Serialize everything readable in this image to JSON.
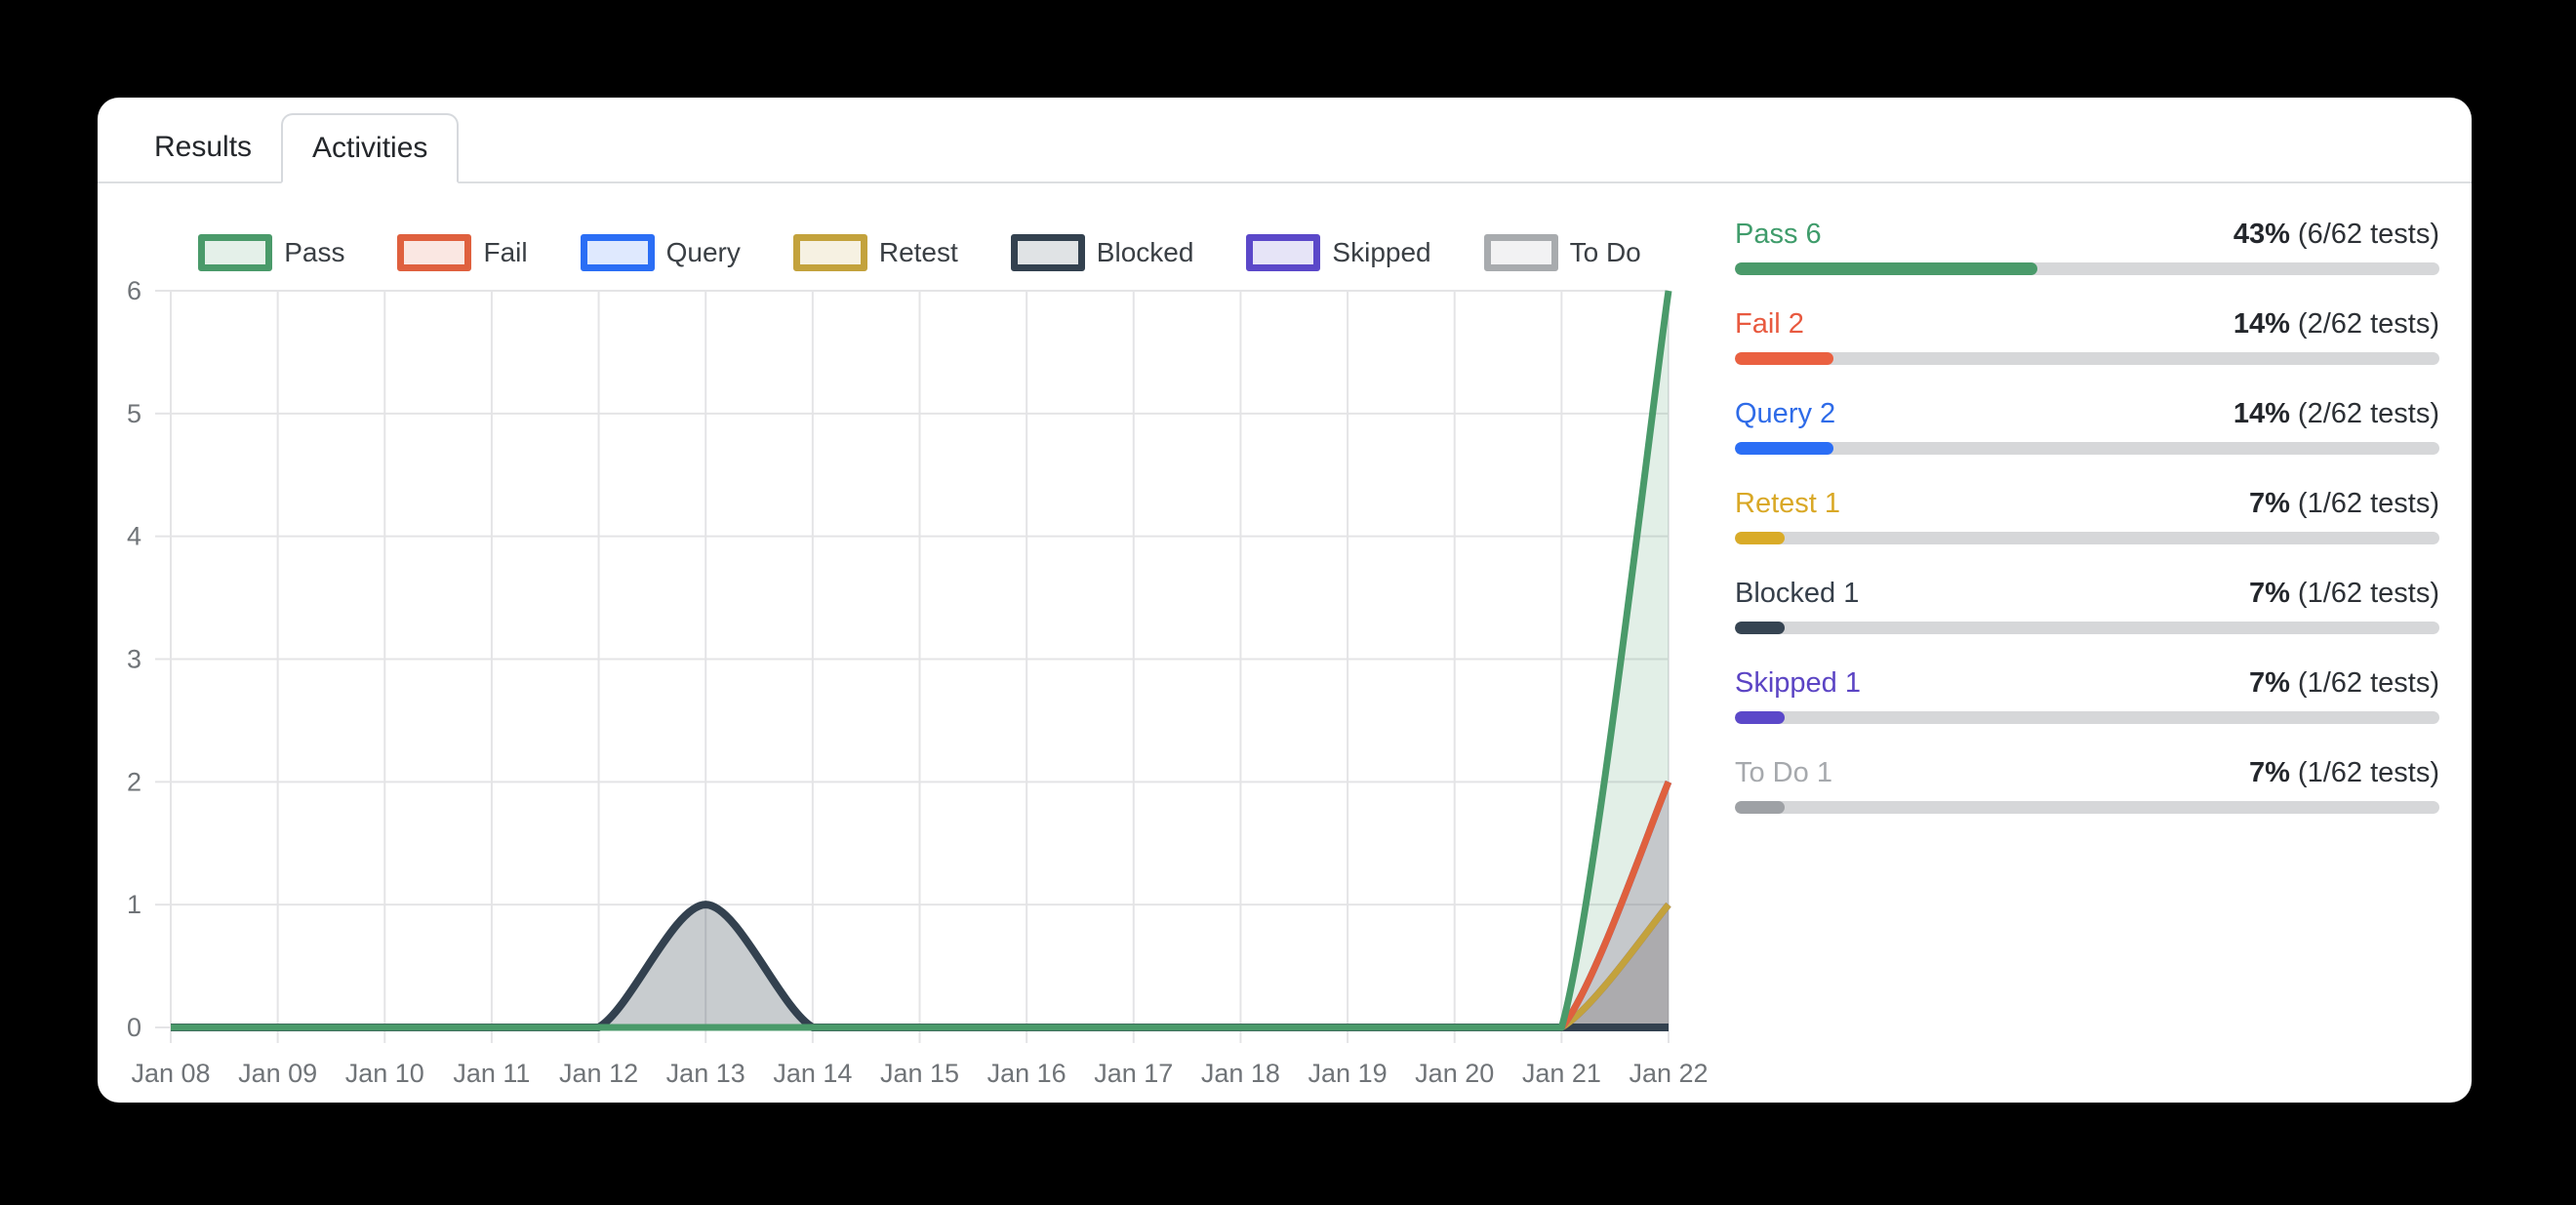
{
  "tabs": [
    {
      "label": "Results",
      "active": false
    },
    {
      "label": "Activities",
      "active": true
    }
  ],
  "chart_data": {
    "type": "area",
    "title": "",
    "xlabel": "",
    "ylabel": "",
    "x": [
      "Jan 08",
      "Jan 09",
      "Jan 10",
      "Jan 11",
      "Jan 12",
      "Jan 13",
      "Jan 14",
      "Jan 15",
      "Jan 16",
      "Jan 17",
      "Jan 18",
      "Jan 19",
      "Jan 20",
      "Jan 21",
      "Jan 22"
    ],
    "ylim": [
      0,
      6
    ],
    "yticks": [
      0,
      1,
      2,
      3,
      4,
      5,
      6
    ],
    "grid": true,
    "legend_position": "top",
    "series": [
      {
        "name": "Pass",
        "color": "#4a9a6a",
        "values": [
          0,
          0,
          0,
          0,
          0,
          0,
          0,
          0,
          0,
          0,
          0,
          0,
          0,
          0,
          6
        ]
      },
      {
        "name": "Fail",
        "color": "#df603e",
        "values": [
          0,
          0,
          0,
          0,
          0,
          0,
          0,
          0,
          0,
          0,
          0,
          0,
          0,
          0,
          2
        ]
      },
      {
        "name": "Query",
        "color": "#2b6ef5",
        "values": [
          0,
          0,
          0,
          0,
          0,
          0,
          0,
          0,
          0,
          0,
          0,
          0,
          0,
          0,
          2
        ]
      },
      {
        "name": "Retest",
        "color": "#c3a23c",
        "values": [
          0,
          0,
          0,
          0,
          0,
          0,
          0,
          0,
          0,
          0,
          0,
          0,
          0,
          0,
          1
        ]
      },
      {
        "name": "Blocked",
        "color": "#33414f",
        "values": [
          0,
          0,
          0,
          0,
          0,
          1,
          0,
          0,
          0,
          0,
          0,
          0,
          0,
          0,
          0
        ]
      },
      {
        "name": "Skipped",
        "color": "#5b48c9",
        "values": [
          0,
          0,
          0,
          0,
          0,
          0,
          0,
          0,
          0,
          0,
          0,
          0,
          0,
          0,
          1
        ]
      },
      {
        "name": "To Do",
        "color": "#a8abae",
        "values": [
          0,
          0,
          0,
          0,
          0,
          0,
          0,
          0,
          0,
          0,
          0,
          0,
          0,
          0,
          1
        ]
      }
    ],
    "draw_order": [
      "To Do",
      "Skipped",
      "Blocked",
      "Retest",
      "Query",
      "Fail",
      "Pass"
    ]
  },
  "summary": [
    {
      "label": "Pass 6",
      "percent": "43%",
      "detail": " (6/62 tests)",
      "pct": 43,
      "label_color": "#3f9c6b",
      "bar_color": "#4a9a6a"
    },
    {
      "label": "Fail 2",
      "percent": "14%",
      "detail": " (2/62 tests)",
      "pct": 14,
      "label_color": "#e8593f",
      "bar_color": "#ea6040"
    },
    {
      "label": "Query 2",
      "percent": "14%",
      "detail": " (2/62 tests)",
      "pct": 14,
      "label_color": "#2e6be8",
      "bar_color": "#2b6ef5"
    },
    {
      "label": "Retest 1",
      "percent": "7%",
      "detail": " (1/62 tests)",
      "pct": 7,
      "label_color": "#d9a826",
      "bar_color": "#d9ab28"
    },
    {
      "label": "Blocked 1",
      "percent": "7%",
      "detail": " (1/62 tests)",
      "pct": 7,
      "label_color": "#363f4a",
      "bar_color": "#364452"
    },
    {
      "label": "Skipped 1",
      "percent": "7%",
      "detail": " (1/62 tests)",
      "pct": 7,
      "label_color": "#5b44c4",
      "bar_color": "#5b48c9"
    },
    {
      "label": "To Do 1",
      "percent": "7%",
      "detail": " (1/62 tests)",
      "pct": 7,
      "label_color": "#a6a9ad",
      "bar_color": "#9ea1a5"
    }
  ],
  "colors": {
    "card_bg": "#ffffff",
    "page_bg": "#000000",
    "grid": "#e4e4e6",
    "tick_text": "#707478",
    "track": "#d6d7d9",
    "tab_border": "#d6d9dd"
  }
}
